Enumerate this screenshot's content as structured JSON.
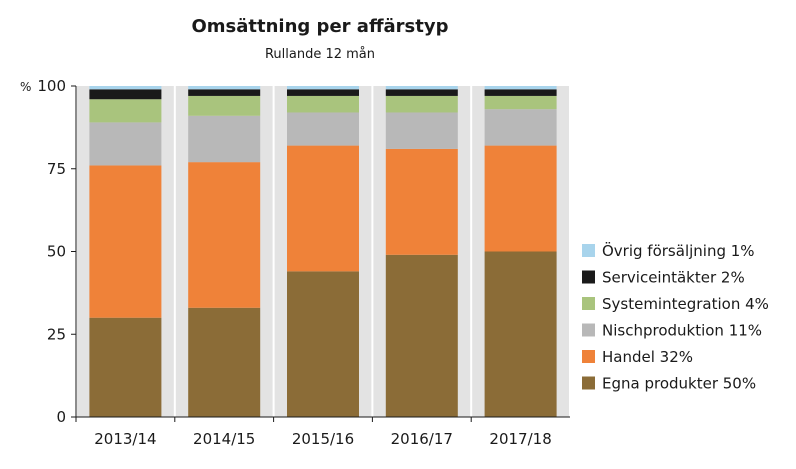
{
  "chart_data": {
    "type": "bar",
    "stacked": true,
    "title": "Omsättning per affärstyp",
    "subtitle": "Rullande 12 mån",
    "ylabel": "%",
    "ylim": [
      0,
      100
    ],
    "yticks": [
      0,
      25,
      50,
      75,
      100
    ],
    "grid": false,
    "legend_position": "right",
    "categories": [
      "2013/14",
      "2014/15",
      "2015/16",
      "2016/17",
      "2017/18"
    ],
    "series": [
      {
        "name": "Egna produkter 50%",
        "color": "#8b6c37",
        "values": [
          30,
          33,
          44,
          49,
          50
        ]
      },
      {
        "name": "Handel 32%",
        "color": "#ef8239",
        "values": [
          46,
          44,
          38,
          32,
          32
        ]
      },
      {
        "name": "Nischproduktion 11%",
        "color": "#b8b8b8",
        "values": [
          13,
          14,
          10,
          11,
          11
        ]
      },
      {
        "name": "Systemintegration 4%",
        "color": "#a9c47d",
        "values": [
          7,
          6,
          5,
          5,
          4
        ]
      },
      {
        "name": "Serviceintäkter 2%",
        "color": "#1a1a1a",
        "values": [
          3,
          2,
          2,
          2,
          2
        ]
      },
      {
        "name": "Övrig försäljning 1%",
        "color": "#a8d4ec",
        "values": [
          1,
          1,
          1,
          1,
          1
        ]
      }
    ],
    "background_band_color": "#e3e3e3"
  }
}
